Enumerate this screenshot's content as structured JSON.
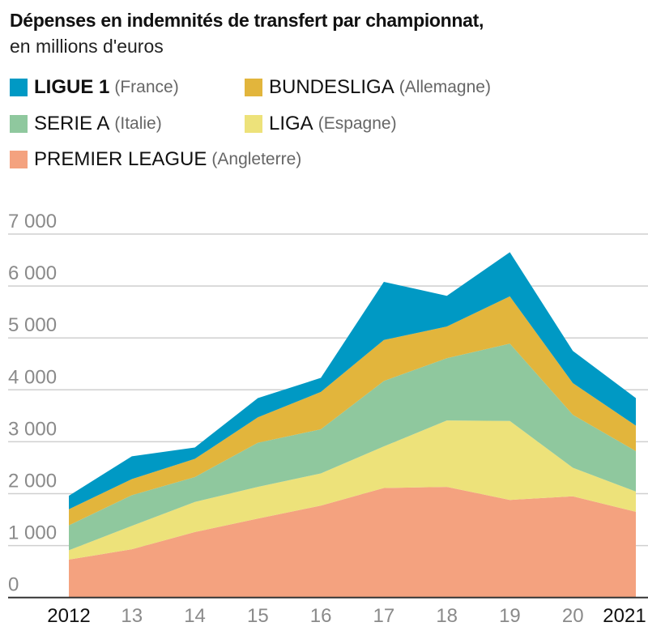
{
  "chart_data": {
    "type": "area",
    "stacked": true,
    "title": "Dépenses en indemnités de transfert par championnat,",
    "subtitle": "en millions d'euros",
    "categories": [
      "2012",
      "13",
      "14",
      "15",
      "16",
      "17",
      "18",
      "19",
      "20",
      "2021"
    ],
    "x": [
      2012,
      2013,
      2014,
      2015,
      2016,
      2017,
      2018,
      2019,
      2020,
      2021
    ],
    "ylim": [
      0,
      7000
    ],
    "yticks": [
      0,
      1000,
      2000,
      3000,
      4000,
      5000,
      6000,
      7000
    ],
    "ytick_labels": [
      "0",
      "1 000",
      "2 000",
      "3 000",
      "4 000",
      "5 000",
      "6 000",
      "7 000"
    ],
    "grid": true,
    "legend_placement": "top",
    "series": [
      {
        "name": "PREMIER LEAGUE",
        "country": "(Angleterre)",
        "color": "#f4a27f",
        "values": [
          730,
          930,
          1260,
          1520,
          1770,
          2110,
          2130,
          1880,
          1950,
          1650
        ]
      },
      {
        "name": "LIGA",
        "country": "(Espagne)",
        "color": "#ede27a",
        "values": [
          180,
          450,
          580,
          610,
          620,
          800,
          1280,
          1520,
          550,
          390
        ]
      },
      {
        "name": "SERIE A",
        "country": "(Italie)",
        "color": "#8fc89e",
        "values": [
          480,
          590,
          480,
          850,
          850,
          1260,
          1200,
          1490,
          1020,
          780
        ]
      },
      {
        "name": "BUNDESLIGA",
        "country": "(Allemagne)",
        "color": "#e2b53c",
        "values": [
          310,
          310,
          350,
          490,
          720,
          790,
          610,
          910,
          610,
          490
        ]
      },
      {
        "name": "LIGUE 1",
        "country": "(France)",
        "color": "#0099c4",
        "values": [
          260,
          440,
          220,
          370,
          270,
          1120,
          590,
          850,
          620,
          530
        ]
      }
    ]
  }
}
